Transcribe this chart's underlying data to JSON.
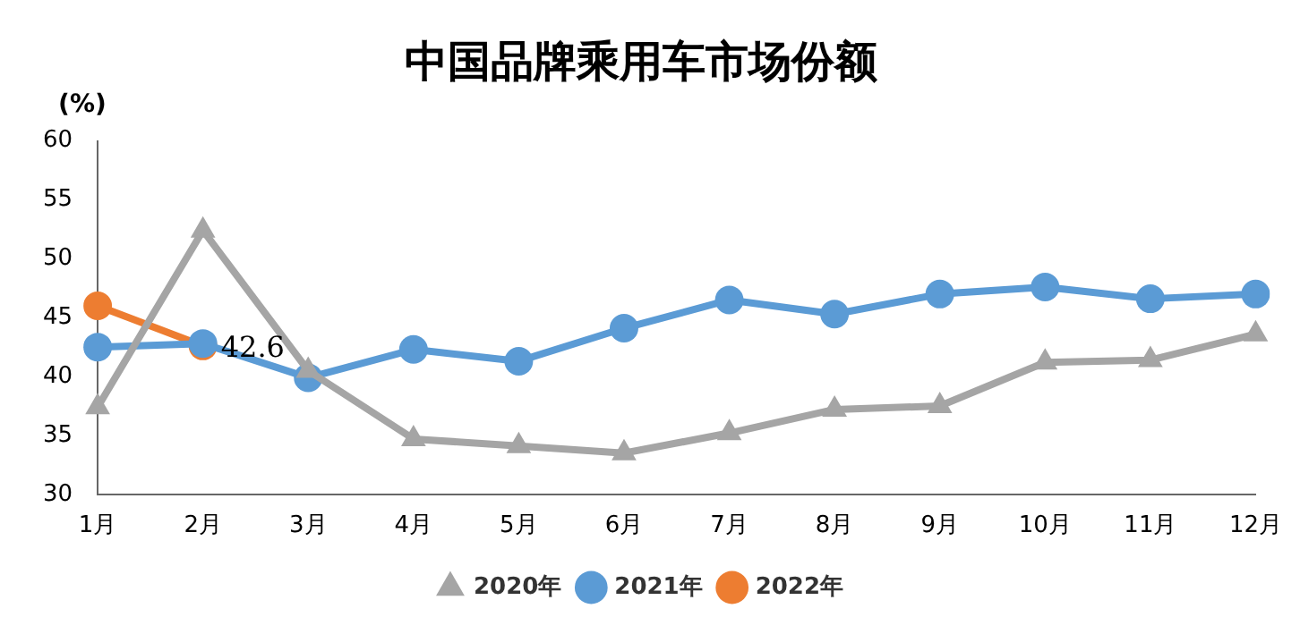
{
  "chart_data": {
    "type": "line",
    "title": "中国品牌乘用车市场份额",
    "ylabel": "(%)",
    "categories": [
      "1月",
      "2月",
      "3月",
      "4月",
      "5月",
      "6月",
      "7月",
      "8月",
      "9月",
      "10月",
      "11月",
      "12月"
    ],
    "ylim": [
      30,
      60
    ],
    "yticks": [
      30,
      35,
      40,
      45,
      50,
      55,
      60
    ],
    "grid": false,
    "legend": "bottom",
    "series": [
      {
        "name": "2020年",
        "color": "#a5a5a5",
        "marker": "triangle",
        "values": [
          37.4,
          52.4,
          40.5,
          34.7,
          34.1,
          33.5,
          35.2,
          37.2,
          37.5,
          41.2,
          41.4,
          43.6
        ]
      },
      {
        "name": "2021年",
        "color": "#5b9bd5",
        "marker": "circle",
        "values": [
          42.5,
          42.8,
          39.9,
          42.3,
          41.3,
          44.1,
          46.5,
          45.3,
          47.0,
          47.6,
          46.6,
          47.0
        ]
      },
      {
        "name": "2022年",
        "color": "#ed7d31",
        "marker": "circle",
        "values": [
          46.0,
          42.6,
          null,
          null,
          null,
          null,
          null,
          null,
          null,
          null,
          null,
          null
        ],
        "value_labels": [
          null,
          "42.6",
          null,
          null,
          null,
          null,
          null,
          null,
          null,
          null,
          null,
          null
        ]
      }
    ]
  }
}
